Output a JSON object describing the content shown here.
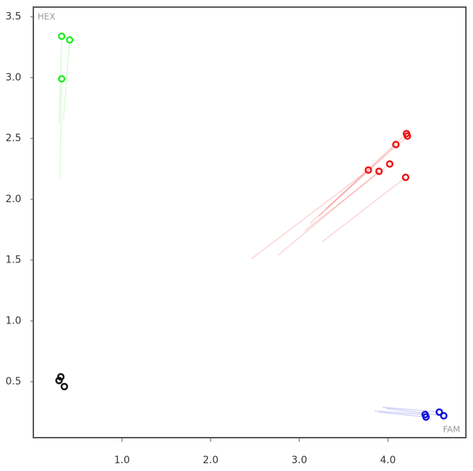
{
  "chart_data": {
    "type": "scatter",
    "x_label": "FAM",
    "y_label": "HEX",
    "xlim": [
      0,
      4.88
    ],
    "ylim": [
      0.04,
      3.58
    ],
    "xticks": [
      {
        "value": 1,
        "label": "1.0"
      },
      {
        "value": 2,
        "label": "2.0"
      },
      {
        "value": 3,
        "label": "3.0"
      },
      {
        "value": 4,
        "label": "4.0"
      }
    ],
    "yticks": [
      0.5,
      {
        "value": 1,
        "label": "1.0"
      },
      1.5,
      {
        "value": 2,
        "label": "2.0"
      },
      2.5,
      {
        "value": 3,
        "label": "3.0"
      },
      3.5
    ],
    "series": [
      {
        "color": "#22ee22",
        "x": [
          0.32,
          0.41,
          0.32
        ],
        "y": [
          3.34,
          3.31,
          2.99
        ],
        "trail_x": [
          0.29,
          0.34,
          0.3
        ],
        "trail_y": [
          2.63,
          2.66,
          2.18
        ]
      },
      {
        "color": "#ee1111",
        "x": [
          3.78,
          3.9,
          4.02,
          4.09,
          4.21,
          4.22,
          4.2
        ],
        "y": [
          2.24,
          2.23,
          2.29,
          2.45,
          2.54,
          2.52,
          2.18
        ],
        "trail_x": [
          2.46,
          2.76,
          3.06,
          3.22,
          3.3,
          3.12,
          3.26
        ],
        "trail_y": [
          1.51,
          1.54,
          1.74,
          1.86,
          1.92,
          1.8,
          1.65
        ]
      },
      {
        "color": "#1111dd",
        "x": [
          4.42,
          4.43,
          4.58,
          4.63
        ],
        "y": [
          0.23,
          0.21,
          0.25,
          0.22
        ],
        "trail_x": [
          3.85,
          3.9,
          3.94,
          3.98
        ],
        "trail_y": [
          0.26,
          0.25,
          0.29,
          0.28
        ]
      },
      {
        "color": "#111111",
        "x": [
          0.31,
          0.29,
          0.35
        ],
        "y": [
          0.54,
          0.51,
          0.46
        ]
      }
    ]
  }
}
